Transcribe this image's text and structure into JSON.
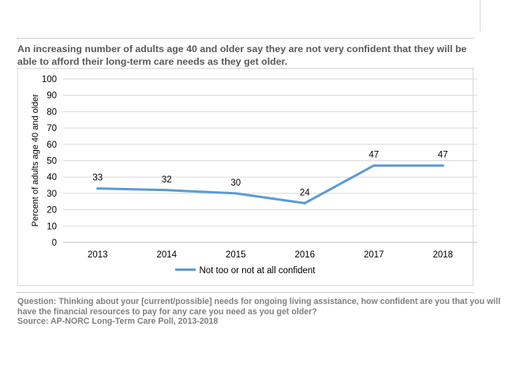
{
  "headline": "An increasing number of adults age 40 and older say they are not very confident that they will be able to afford their long-term care needs as they get older.",
  "footnote": {
    "question_line1": "Question: Thinking about your [current/possible] needs for ongoing living assistance, how confident are you that you will",
    "question_line2": "have the financial resources to pay for any care you need as you get older?",
    "source": "Source: AP-NORC Long-Term Care Poll, 2013-2018"
  },
  "chart_data": {
    "type": "line",
    "title": "",
    "xlabel": "",
    "ylabel": "Percent of adults age 40 and older",
    "categories": [
      "2013",
      "2014",
      "2015",
      "2016",
      "2017",
      "2018"
    ],
    "series": [
      {
        "name": "Not too or not at all confident",
        "values": [
          33,
          32,
          30,
          24,
          47,
          47
        ],
        "color": "#5b9bd5",
        "data_labels": [
          "33",
          "32",
          "30",
          "24",
          "47",
          "47"
        ]
      }
    ],
    "yticks": [
      "0",
      "10",
      "20",
      "30",
      "40",
      "50",
      "60",
      "70",
      "80",
      "90",
      "100"
    ],
    "ylim": [
      0,
      100
    ],
    "grid": true,
    "legend": "bottom-center",
    "colors": {
      "grid": "#d9d9d9",
      "axis_text": "#000000"
    }
  }
}
